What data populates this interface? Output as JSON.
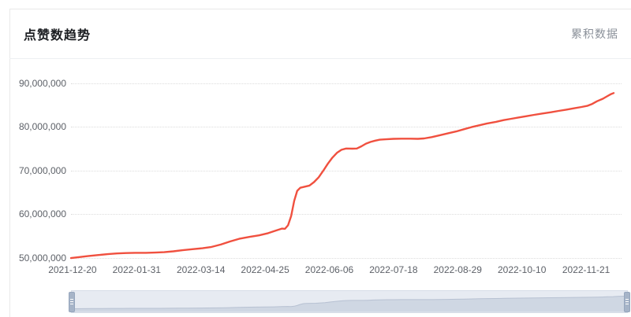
{
  "header": {
    "title": "点赞数趋势",
    "right_label": "累积数据"
  },
  "colors": {
    "line": "#f0503f",
    "grid": "#dcdcdc",
    "axis_text": "#5d6168",
    "title_text": "#1b1d21",
    "subtitle_text": "#8a9099",
    "slider_bg": "#e7ebf2",
    "slider_border": "#d6dce7",
    "slider_fill": "#cfd7e3",
    "slider_stroke": "#b7c1d2",
    "slider_handle": "#a6b4c8",
    "card_border": "#e9e9e9"
  },
  "chart_data": {
    "type": "line",
    "title": "点赞数趋势",
    "series_label": "累积数据",
    "xlabel": "",
    "ylabel": "",
    "grid": "horizontal-dotted",
    "legend_position": "none",
    "ylim": [
      50000000,
      90000000
    ],
    "y_ticks": {
      "labels": [
        "50,000,000",
        "60,000,000",
        "70,000,000",
        "80,000,000",
        "90,000,000"
      ],
      "values": [
        50000000,
        60000000,
        70000000,
        80000000,
        90000000
      ]
    },
    "x_ticks": [
      "2021-12-20",
      "2022-01-31",
      "2022-03-14",
      "2022-04-25",
      "2022-06-06",
      "2022-07-18",
      "2022-08-29",
      "2022-10-10",
      "2022-11-21"
    ],
    "x": [
      "2021-12-19",
      "2021-12-24",
      "2021-12-30",
      "2022-01-06",
      "2022-01-12",
      "2022-01-18",
      "2022-01-24",
      "2022-01-30",
      "2022-02-06",
      "2022-02-12",
      "2022-02-18",
      "2022-02-24",
      "2022-03-02",
      "2022-03-09",
      "2022-03-15",
      "2022-03-21",
      "2022-03-27",
      "2022-04-02",
      "2022-04-08",
      "2022-04-15",
      "2022-04-21",
      "2022-04-27",
      "2022-05-02",
      "2022-05-06",
      "2022-05-08",
      "2022-05-10",
      "2022-05-12",
      "2022-05-14",
      "2022-05-16",
      "2022-05-18",
      "2022-05-21",
      "2022-05-24",
      "2022-05-27",
      "2022-05-30",
      "2022-06-02",
      "2022-06-05",
      "2022-06-08",
      "2022-06-11",
      "2022-06-14",
      "2022-06-17",
      "2022-06-21",
      "2022-06-24",
      "2022-06-27",
      "2022-06-30",
      "2022-07-03",
      "2022-07-06",
      "2022-07-09",
      "2022-07-13",
      "2022-07-18",
      "2022-07-24",
      "2022-07-29",
      "2022-08-03",
      "2022-08-07",
      "2022-08-12",
      "2022-08-17",
      "2022-08-23",
      "2022-08-28",
      "2022-09-02",
      "2022-09-07",
      "2022-09-12",
      "2022-09-17",
      "2022-09-23",
      "2022-09-28",
      "2022-10-03",
      "2022-10-08",
      "2022-10-13",
      "2022-10-18",
      "2022-10-23",
      "2022-10-29",
      "2022-11-03",
      "2022-11-08",
      "2022-11-13",
      "2022-11-18",
      "2022-11-22",
      "2022-11-25",
      "2022-11-28",
      "2022-12-02",
      "2022-12-05",
      "2022-12-07",
      "2022-12-09"
    ],
    "values": [
      49900000,
      50100000,
      50350000,
      50600000,
      50800000,
      50950000,
      51050000,
      51100000,
      51100000,
      51150000,
      51250000,
      51450000,
      51700000,
      51950000,
      52150000,
      52450000,
      53000000,
      53700000,
      54300000,
      54750000,
      55100000,
      55600000,
      56200000,
      56650000,
      56600000,
      57400000,
      59500000,
      63000000,
      65300000,
      66000000,
      66250000,
      66500000,
      67300000,
      68400000,
      69900000,
      71500000,
      72900000,
      74000000,
      74700000,
      75000000,
      74950000,
      75000000,
      75500000,
      76100000,
      76500000,
      76800000,
      77000000,
      77100000,
      77200000,
      77250000,
      77250000,
      77200000,
      77300000,
      77600000,
      78000000,
      78500000,
      78900000,
      79400000,
      79900000,
      80300000,
      80700000,
      81100000,
      81500000,
      81800000,
      82100000,
      82400000,
      82700000,
      83000000,
      83300000,
      83600000,
      83900000,
      84200000,
      84500000,
      84800000,
      85200000,
      85800000,
      86400000,
      87000000,
      87400000,
      87700000
    ]
  },
  "slider": {
    "range_start_label": "2021-12-19",
    "range_end_label": "2022-12-09"
  }
}
